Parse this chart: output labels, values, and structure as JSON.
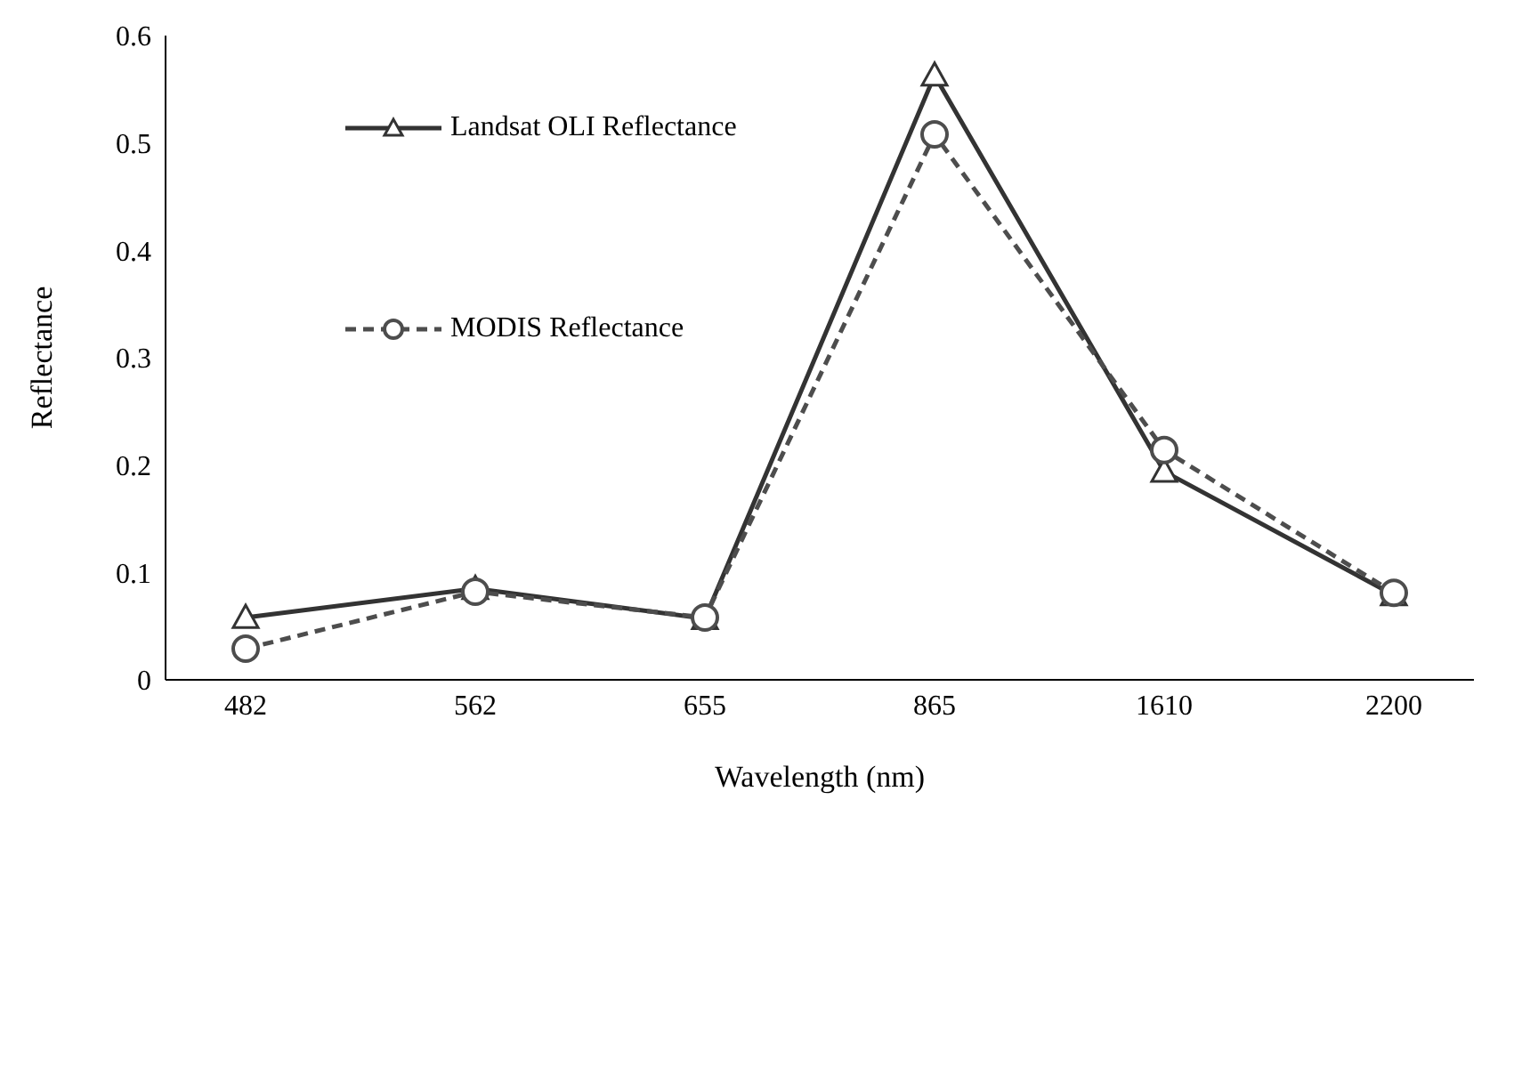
{
  "chart_data": {
    "type": "line",
    "xlabel": "Wavelength (nm)",
    "ylabel": "Reflectance",
    "categories": [
      "482",
      "562",
      "655",
      "865",
      "1610",
      "2200"
    ],
    "series": [
      {
        "name": "Landsat OLI Reflectance",
        "color": "#333333",
        "marker": "triangle",
        "line_style": "solid",
        "values": [
          0.058,
          0.085,
          0.057,
          0.563,
          0.194,
          0.079
        ]
      },
      {
        "name": "MODIS Reflectance",
        "color": "#4d4d4d",
        "marker": "circle",
        "line_style": "dashed",
        "values": [
          0.029,
          0.082,
          0.058,
          0.508,
          0.214,
          0.081
        ]
      }
    ],
    "ylim": [
      0,
      0.6
    ],
    "yticks": [
      0,
      0.1,
      0.2,
      0.3,
      0.4,
      0.5,
      0.6
    ],
    "grid": false,
    "legend": "top left"
  }
}
